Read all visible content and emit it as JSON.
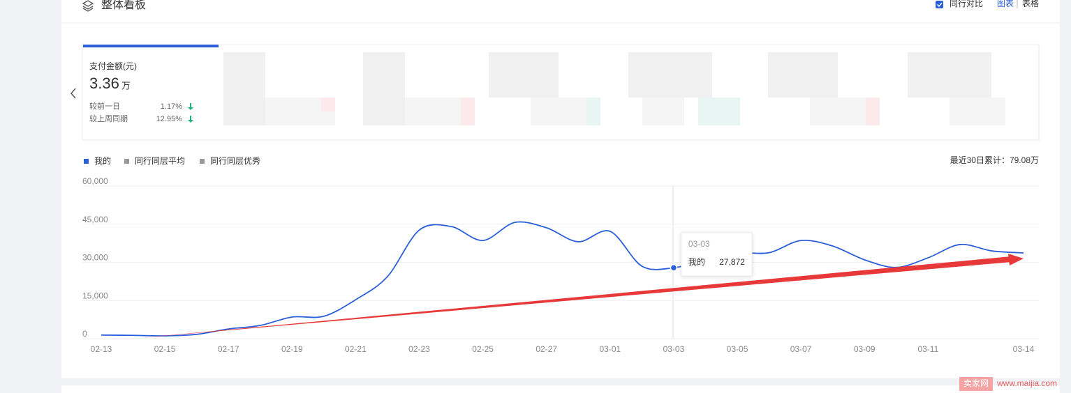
{
  "header": {
    "title": "整体看板",
    "compare": "同行对比",
    "view_chart": "图表",
    "view_table": "表格"
  },
  "metric_card": {
    "name": "支付金额(元)",
    "value": "3.36",
    "unit": "万",
    "day_label": "较前一日",
    "day_change": "1.17%",
    "week_label": "较上周同期",
    "week_change": "12.95%"
  },
  "summary": "最近30日累计：79.08万",
  "watermark": {
    "brand": "卖家网",
    "url": "www.maijia.com"
  },
  "chart_data": {
    "type": "line",
    "categories": [
      "02-13",
      null,
      "02-15",
      null,
      "02-17",
      null,
      "02-19",
      null,
      "02-21",
      null,
      "02-23",
      null,
      "02-25",
      null,
      "02-27",
      null,
      "03-01",
      null,
      "03-03",
      null,
      "03-05",
      null,
      "03-07",
      null,
      "03-09",
      null,
      "03-11",
      null,
      null,
      "03-14"
    ],
    "series": [
      {
        "name": "我的",
        "color": "#2b5fd9",
        "values": [
          1400,
          1300,
          1100,
          1700,
          3800,
          5200,
          8500,
          8800,
          15300,
          24400,
          42700,
          44100,
          38600,
          45700,
          43600,
          38100,
          42200,
          28500,
          27872,
          31000,
          33700,
          33800,
          38600,
          36400,
          31000,
          28000,
          31800,
          37000,
          34500,
          33700
        ],
        "value_labels": [
          null,
          null,
          null,
          null,
          null,
          null,
          null,
          null,
          null,
          null,
          null,
          null,
          null,
          null,
          null,
          null,
          null,
          null,
          "27,872",
          null,
          null,
          null,
          null,
          null,
          null,
          null,
          null,
          null,
          null,
          null
        ]
      }
    ],
    "legend_items": [
      {
        "name": "同行同层平均",
        "color": "#999999"
      },
      {
        "name": "同行同层优秀",
        "color": "#999999"
      }
    ],
    "ylim": [
      0,
      60000
    ],
    "yticks": [
      0,
      {
        "value": 15000,
        "label": "15,000"
      },
      {
        "value": 30000,
        "label": "30,000"
      },
      {
        "value": 45000,
        "label": "45,000"
      },
      {
        "value": 60000,
        "label": "60,000"
      }
    ],
    "grid": true
  }
}
